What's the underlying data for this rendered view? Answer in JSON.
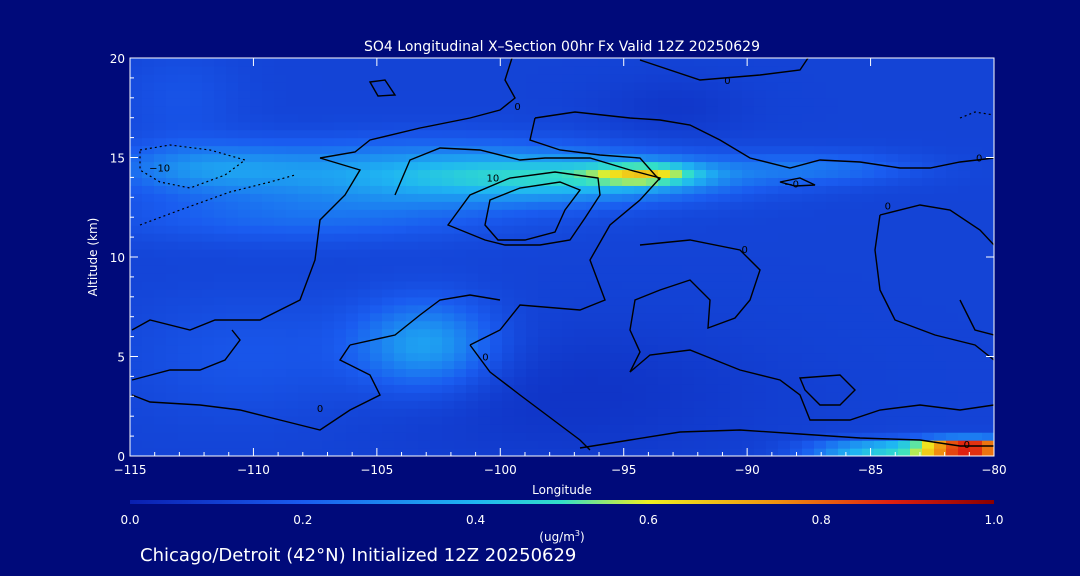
{
  "chart_data": {
    "type": "heatmap",
    "title": "SO4 Longitudinal X–Section 00hr  Fx Valid 12Z 20250629",
    "xlabel": "Longitude",
    "ylabel": "Altitude (km)",
    "xlim": [
      -115,
      -80
    ],
    "ylim": [
      0,
      20
    ],
    "x_ticks": [
      -115,
      -110,
      -105,
      -100,
      -95,
      -90,
      -85,
      -80
    ],
    "x_tick_labels": [
      "−115",
      "−110",
      "−105",
      "−100",
      "−95",
      "−90",
      "−85",
      "−80"
    ],
    "y_ticks": [
      0,
      5,
      10,
      15,
      20
    ],
    "y_tick_labels": [
      "0",
      "5",
      "10",
      "15",
      "20"
    ],
    "colorbar": {
      "min": 0.0,
      "max": 1.0,
      "ticks": [
        0.0,
        0.2,
        0.4,
        0.6,
        0.8,
        1.0
      ],
      "tick_labels": [
        "0.0",
        "0.2",
        "0.4",
        "0.6",
        "0.8",
        "1.0"
      ],
      "unit_label_main": "(ug/m",
      "unit_label_sup": "3",
      "unit_label_end": ")",
      "colors": [
        "#0a1fb0",
        "#1a5cf0",
        "#1fb6f2",
        "#33e0c8",
        "#f0f020",
        "#f09010",
        "#e02010",
        "#8a0000"
      ]
    },
    "field": {
      "background_value": 0.12,
      "blobs": [
        {
          "lon": -103,
          "alt": 14.2,
          "slon": 8,
          "salt": 1.6,
          "value": 0.25
        },
        {
          "lon": -96,
          "alt": 14.0,
          "slon": 6,
          "salt": 1.1,
          "value": 0.22
        },
        {
          "lon": -94,
          "alt": 14.2,
          "slon": 2.2,
          "salt": 0.55,
          "value": 0.28
        },
        {
          "lon": -112,
          "alt": 14.5,
          "slon": 4,
          "salt": 1.2,
          "value": 0.15
        },
        {
          "lon": -87,
          "alt": 14.5,
          "slon": 4,
          "salt": 0.8,
          "value": 0.12
        },
        {
          "lon": -108,
          "alt": 12.0,
          "slon": 8,
          "salt": 1.3,
          "value": 0.1
        },
        {
          "lon": -103,
          "alt": 5.6,
          "slon": 2.8,
          "salt": 2.2,
          "value": 0.24
        },
        {
          "lon": -110,
          "alt": 5.0,
          "slon": 5,
          "salt": 3.0,
          "value": 0.06
        },
        {
          "lon": -113,
          "alt": 18.0,
          "slon": 2.5,
          "salt": 2.5,
          "value": 0.05
        },
        {
          "lon": -93,
          "alt": 17.5,
          "slon": 3,
          "salt": 1.5,
          "value": -0.04
        },
        {
          "lon": -81,
          "alt": 0.4,
          "slon": 2.2,
          "salt": 0.45,
          "value": 0.9
        },
        {
          "lon": -85,
          "alt": 0.3,
          "slon": 2.5,
          "salt": 0.5,
          "value": 0.3
        },
        {
          "lon": -97,
          "alt": 3.0,
          "slon": 8,
          "salt": 3.5,
          "value": -0.05
        }
      ]
    },
    "contour_labels": [
      {
        "text": "−10",
        "lon": -113.8,
        "alt": 14.5
      },
      {
        "text": "10",
        "lon": -100.3,
        "alt": 14.0
      },
      {
        "text": "0",
        "lon": -90.8,
        "alt": 18.9
      },
      {
        "text": "0",
        "lon": -99.3,
        "alt": 17.6
      },
      {
        "text": "−0",
        "lon": -88.2,
        "alt": 13.7
      },
      {
        "text": "0",
        "lon": -80.6,
        "alt": 15.0
      },
      {
        "text": "0",
        "lon": -84.3,
        "alt": 12.6
      },
      {
        "text": "0",
        "lon": -90.1,
        "alt": 10.4
      },
      {
        "text": "0",
        "lon": -107.3,
        "alt": 2.4
      },
      {
        "text": "0",
        "lon": -100.6,
        "alt": 5.0
      },
      {
        "text": "0",
        "lon": -81.1,
        "alt": 0.6
      }
    ]
  },
  "footer_text": "Chicago/Detroit (42°N) Initialized 12Z 20250629"
}
